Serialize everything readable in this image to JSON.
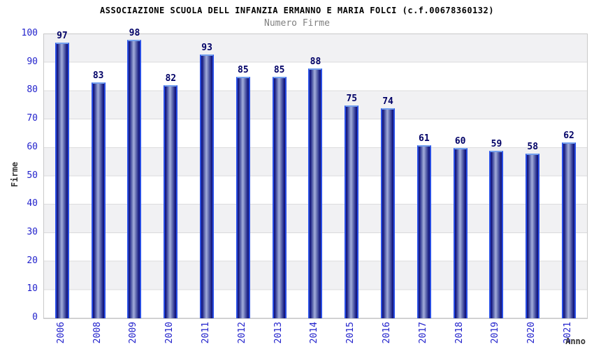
{
  "colors": {
    "tick_label_blue": "#2222cc",
    "value_label_navy": "#000066",
    "band_gray": "#f1f1f3",
    "plot_border_gray": "#c9c9c9",
    "bar_edge_blue": "#2a4fe4",
    "bar_top_blue": "#74a0ee",
    "bar_dark_navy": "#0c0d72",
    "bar_highlight": "#a3addc",
    "subtitle_gray": "#808080",
    "axis_title_gray": "#333333"
  },
  "chart_data": {
    "type": "bar",
    "title": "ASSOCIAZIONE SCUOLA DELL INFANZIA ERMANNO E MARIA FOLCI (c.f.00678360132)",
    "subtitle": "Numero Firme",
    "xlabel": "Anno",
    "ylabel": "Firme",
    "categories": [
      "2006",
      "2008",
      "2009",
      "2010",
      "2011",
      "2012",
      "2013",
      "2014",
      "2015",
      "2016",
      "2017",
      "2018",
      "2019",
      "2020",
      "2021"
    ],
    "values": [
      97,
      83,
      98,
      82,
      93,
      85,
      85,
      88,
      75,
      74,
      61,
      60,
      59,
      58,
      62
    ],
    "ylim": [
      0,
      100
    ],
    "yticks": [
      0,
      10,
      20,
      30,
      40,
      50,
      60,
      70,
      80,
      90,
      100
    ],
    "grid": "alternating-horizontal-bands",
    "legend": "none"
  }
}
